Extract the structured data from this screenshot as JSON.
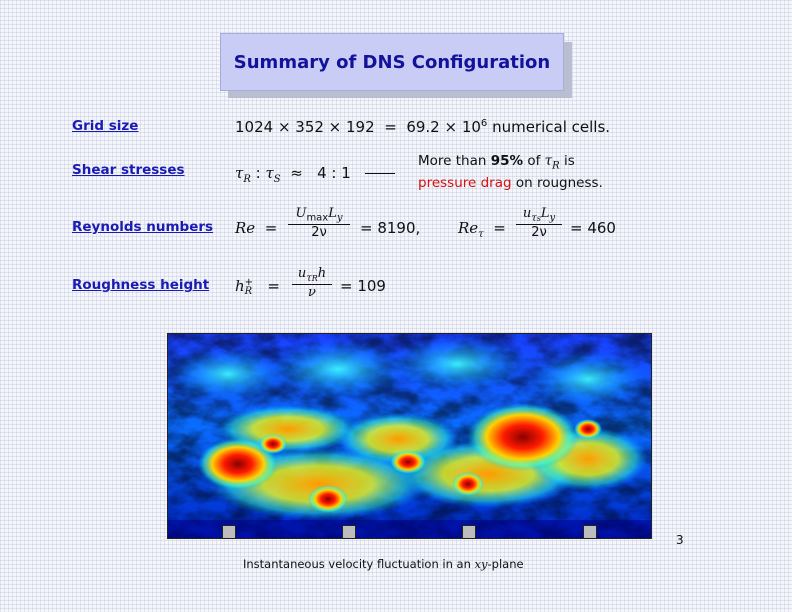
{
  "title": "Summary of DNS Configuration",
  "rows": {
    "grid": {
      "label": "Grid size",
      "dims": "1024 × 352 × 192",
      "eq": "=",
      "total": "69.2 × 10",
      "total_exp": "6",
      "unit": "numerical cells."
    },
    "shear": {
      "label": "Shear stresses",
      "tau_r": "τ",
      "sub_r": "R",
      "colon": ":",
      "tau_s": "τ",
      "sub_s": "S",
      "approx": "≈",
      "ratio": "4 : 1",
      "note_1": "More than",
      "note_pct": "95%",
      "note_2": "of",
      "note_tau": "τ",
      "note_tau_sub": "R",
      "note_3": "is",
      "note_red": "pressure drag",
      "note_4": "on rougness."
    },
    "reynolds": {
      "label": "Reynolds numbers",
      "re": "Re",
      "eq1": "=",
      "num1_u": "U",
      "num1_sub": "max",
      "num1_l": "L",
      "num1_y": "y",
      "den1": "2ν",
      "val1": "= 8190,",
      "re_tau": "Re",
      "re_tau_sub": "τ",
      "eq2": "=",
      "num2_u": "u",
      "num2_sub": "τ",
      "num2_subsub": "s",
      "num2_l": "L",
      "num2_y": "y",
      "den2": "2ν",
      "val2": "= 460"
    },
    "roughness": {
      "label": "Roughness height",
      "h": "h",
      "h_sup": "+",
      "h_sub": "R",
      "eq": "=",
      "num_u": "u",
      "num_sub": "τ",
      "num_subsub": "R",
      "num_h": "h",
      "den": "ν",
      "val": "= 109"
    }
  },
  "caption_1": "Instantaneous velocity fluctuation in an",
  "caption_math": "xy",
  "caption_2": "-plane",
  "page_number": "3",
  "colors": {
    "title_bg": "#c9ccf4",
    "title_text": "#12129a",
    "label_text": "#1a1ab4",
    "highlight": "#d41010",
    "colormap": [
      "#00008f",
      "#0000ff",
      "#00ffff",
      "#ffff00",
      "#ff0000",
      "#800000"
    ]
  }
}
